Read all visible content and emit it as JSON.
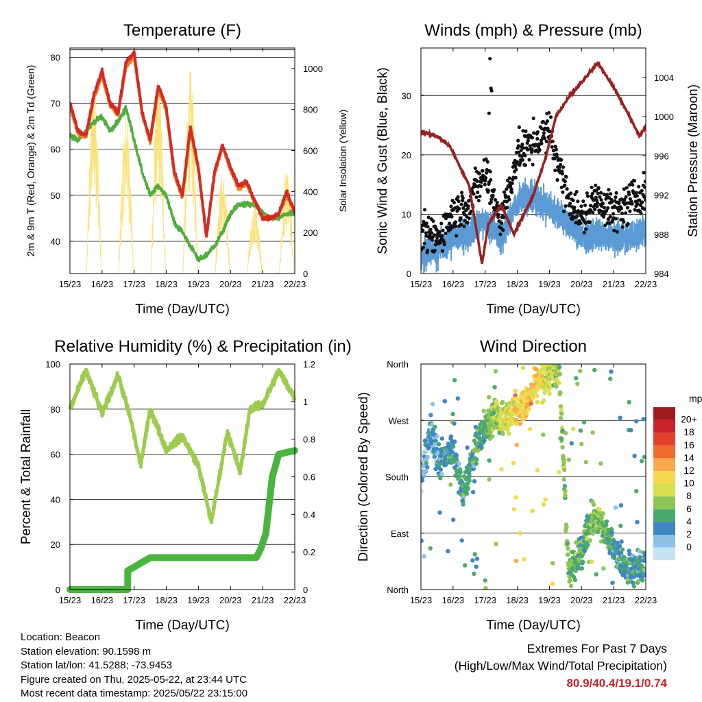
{
  "x_ticks": [
    "15/23",
    "16/23",
    "17/23",
    "18/23",
    "19/23",
    "20/23",
    "21/23",
    "22/23"
  ],
  "colors": {
    "temp_2m": "#d42a24",
    "temp_9m": "#f07f22",
    "dewpoint": "#52ad3e",
    "solar": "#fde27a",
    "wind": "#111111",
    "gust_sonic": "#5b9bd5",
    "pressure": "#9b1f20",
    "rh": "#9ccc4f",
    "precip": "#4ab53e",
    "extremes": "#c8232b"
  },
  "footer": {
    "location": "Location: Beacon",
    "elevation": "Station elevation: 90.1598 m",
    "latlon": "Station lat/lon: 41.5288; -73.9453",
    "created": "Figure created on Thu, 2025-05-22, at 23:44 UTC",
    "latest": "Most recent data timestamp: 2025/05/22 23:15:00"
  },
  "extremes": {
    "title": "Extremes For Past 7 Days",
    "subtitle": "(High/Low/Max Wind/Total Precipitation)",
    "values": "80.9/40.4/19.1/0.74"
  },
  "chart_data": [
    {
      "type": "line",
      "title": "Temperature (F)",
      "xlabel": "Time (Day/UTC)",
      "ylabel": "2m & 9m T (Red, Orange) & 2m Td (Green)",
      "y2label": "Solar Insolation (Yellow)",
      "x": [
        0,
        0.25,
        0.5,
        0.75,
        1,
        1.25,
        1.5,
        1.75,
        2,
        2.25,
        2.5,
        2.75,
        3,
        3.25,
        3.5,
        3.75,
        4,
        4.25,
        4.5,
        4.75,
        5,
        5.25,
        5.5,
        5.75,
        6,
        6.25,
        6.5,
        6.75,
        7
      ],
      "xlim": [
        0,
        7
      ],
      "ylim": [
        33,
        82
      ],
      "y_ticks": [
        40,
        50,
        60,
        70,
        80
      ],
      "y2lim": [
        0,
        1100
      ],
      "y2_ticks": [
        0,
        200,
        400,
        600,
        800,
        1000
      ],
      "series": [
        {
          "key": "temp_2m",
          "values": [
            70,
            64,
            63,
            72,
            77,
            70,
            68,
            79,
            81,
            68,
            62,
            74,
            69,
            55,
            50,
            65,
            56,
            41,
            55,
            61,
            56,
            52,
            53,
            49,
            45,
            45,
            46,
            51,
            46
          ]
        },
        {
          "key": "temp_9m",
          "values": [
            69,
            63.5,
            62.5,
            71,
            76,
            69.5,
            67.5,
            78,
            80,
            67.5,
            61.5,
            73,
            68.5,
            54.5,
            49.5,
            64,
            55.5,
            41,
            54.5,
            60.5,
            55.5,
            51.5,
            52.5,
            48.5,
            45,
            45,
            46,
            50,
            46.5
          ]
        },
        {
          "key": "dewpoint",
          "values": [
            63,
            62,
            64,
            66,
            67,
            64,
            66,
            69,
            62,
            55,
            50,
            52,
            50,
            44,
            42,
            39,
            36,
            37,
            39,
            42,
            46,
            48,
            48,
            48,
            46,
            45,
            45,
            46,
            46
          ]
        },
        {
          "key": "solar",
          "axis": "y2",
          "values": [
            0,
            0,
            950,
            0,
            0,
            800,
            0,
            950,
            0,
            0,
            950,
            0,
            0,
            1000,
            0,
            0,
            500,
            0,
            0,
            350,
            0,
            0,
            500,
            0,
            0,
            300,
            0,
            0,
            0
          ]
        }
      ]
    },
    {
      "type": "scatter",
      "title": "Winds (mph) & Pressure (mb)",
      "xlabel": "Time (Day/UTC)",
      "ylabel": "Sonic Wind & Gust (Blue, Black)",
      "y2label": "Station Pressure (Maroon)",
      "xlim": [
        0,
        7
      ],
      "ylim": [
        0,
        38
      ],
      "y_ticks": [
        0,
        10,
        20,
        30
      ],
      "y2lim": [
        984,
        1007
      ],
      "y2_ticks": [
        984,
        988,
        992,
        996,
        1000,
        1004
      ],
      "series": [
        {
          "key": "gust",
          "x": [
            0,
            0.5,
            1,
            1.5,
            2,
            2.5,
            3,
            3.5,
            4,
            4.5,
            5,
            5.5,
            6,
            6.5,
            7
          ],
          "values": [
            7,
            6,
            10,
            12,
            17,
            9,
            20,
            22,
            24,
            14,
            9,
            13,
            10,
            12,
            14
          ]
        },
        {
          "key": "wind",
          "x": [
            0,
            0.5,
            1,
            1.5,
            2,
            2.5,
            3,
            3.5,
            4,
            4.5,
            5,
            5.5,
            6,
            6.5,
            7
          ],
          "values": [
            3,
            4,
            6,
            7,
            9,
            6,
            12,
            13,
            11,
            9,
            6,
            7,
            6,
            6,
            7
          ]
        },
        {
          "key": "pressure",
          "axis": "y2",
          "x": [
            0,
            0.5,
            0.9,
            1.5,
            1.9,
            2.1,
            2.5,
            2.9,
            3.5,
            3.9,
            4.2,
            4.6,
            5,
            5.5,
            6,
            6.5,
            6.8,
            7
          ],
          "values": [
            998.5,
            998,
            997,
            993,
            985,
            989,
            991,
            988,
            992,
            996,
            1000,
            1002,
            1003.5,
            1005.5,
            1003,
            1000,
            998,
            999
          ]
        }
      ]
    },
    {
      "type": "line",
      "title": "Relative Humidity (%) & Precipitation (in)",
      "xlabel": "Time (Day/UTC)",
      "ylabel": "Percent & Total Rainfall",
      "xlim": [
        0,
        7
      ],
      "ylim": [
        0,
        100
      ],
      "y_ticks": [
        0,
        20,
        40,
        60,
        80,
        100
      ],
      "y2lim": [
        0,
        1.2
      ],
      "y2_ticks": [
        0.0,
        0.2,
        0.4,
        0.6,
        0.8,
        1.0,
        1.2
      ],
      "series": [
        {
          "key": "rh",
          "x": [
            0,
            0.5,
            1,
            1.5,
            1.9,
            2.2,
            2.5,
            3,
            3.5,
            4,
            4.4,
            4.9,
            5.3,
            5.6,
            6,
            6.5,
            7
          ],
          "values": [
            80,
            97,
            78,
            95,
            75,
            55,
            80,
            62,
            68,
            55,
            30,
            70,
            52,
            80,
            82,
            97,
            85
          ]
        },
        {
          "key": "precip",
          "axis": "y2",
          "x": [
            0,
            1.8,
            1.8,
            2.2,
            2.5,
            3,
            4,
            5,
            5.8,
            5.95,
            6.1,
            6.2,
            6.3,
            6.5,
            7
          ],
          "values": [
            0,
            0,
            0.1,
            0.14,
            0.17,
            0.17,
            0.17,
            0.17,
            0.17,
            0.22,
            0.3,
            0.45,
            0.6,
            0.72,
            0.74
          ]
        }
      ]
    },
    {
      "type": "scatter",
      "title": "Wind Direction",
      "xlabel": "Time (Day/UTC)",
      "ylabel": "Direction (Colored By Speed)",
      "xlim": [
        0,
        7
      ],
      "ylim": [
        0,
        360
      ],
      "y_ticks": [
        "North",
        "East",
        "South",
        "West",
        "North"
      ],
      "series": [
        {
          "key": "direction",
          "x": [
            0,
            0.3,
            0.6,
            1,
            1.3,
            1.6,
            2,
            2.3,
            2.6,
            3,
            3.3,
            3.6,
            4,
            4.3,
            4.6,
            5,
            5.3,
            5.6,
            6,
            6.3,
            6.6,
            7
          ],
          "values": [
            180,
            250,
            200,
            230,
            150,
            210,
            260,
            280,
            270,
            290,
            300,
            330,
            340,
            350,
            30,
            60,
            120,
            110,
            60,
            40,
            30,
            40
          ]
        }
      ],
      "legend": {
        "title": "mph",
        "labels": [
          "20+",
          "18",
          "16",
          "14",
          "12",
          "10",
          "8",
          "6",
          "4",
          "2",
          "0"
        ],
        "colors": [
          "#9d1a1f",
          "#c8232b",
          "#e4402b",
          "#f06b2d",
          "#f9a94b",
          "#f6d84c",
          "#d8df4f",
          "#8ec557",
          "#4aaa6e",
          "#3f86c4",
          "#8cc1e8",
          "#c6e3f5"
        ]
      }
    }
  ]
}
